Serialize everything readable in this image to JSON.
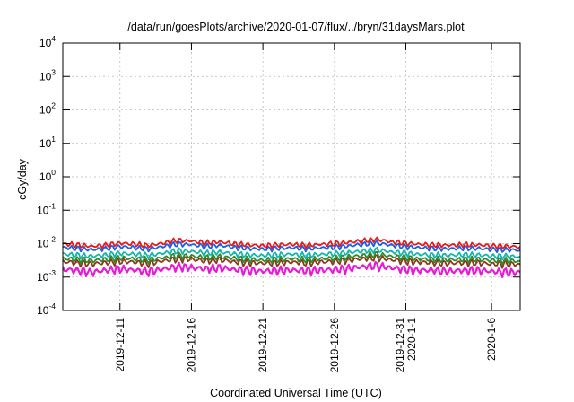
{
  "chart_data": {
    "type": "line",
    "title": "/data/run/goesPlots/archive/2020-01-07/flux/../bryn/31daysMars.plot",
    "xlabel": "Coordinated Universal Time (UTC)",
    "ylabel": "cGy/day",
    "y_scale": "log",
    "ylim": [
      0.0001,
      10000
    ],
    "y_ticks": [
      {
        "base": "10",
        "exp": "-4"
      },
      {
        "base": "10",
        "exp": "-3"
      },
      {
        "base": "10",
        "exp": "-2"
      },
      {
        "base": "10",
        "exp": "-1"
      },
      {
        "base": "10",
        "exp": "0"
      },
      {
        "base": "10",
        "exp": "1"
      },
      {
        "base": "10",
        "exp": "2"
      },
      {
        "base": "10",
        "exp": "3"
      },
      {
        "base": "10",
        "exp": "4"
      }
    ],
    "xlim": [
      "2019-12-07",
      "2020-01-08"
    ],
    "x_ticks": [
      {
        "date": "2019-12-11",
        "lines": [
          "2019-12-11"
        ]
      },
      {
        "date": "2019-12-16",
        "lines": [
          "2019-12-16"
        ]
      },
      {
        "date": "2019-12-21",
        "lines": [
          "2019-12-21"
        ]
      },
      {
        "date": "2019-12-26",
        "lines": [
          "2019-12-26"
        ]
      },
      {
        "date": "2019-12-31",
        "lines": [
          "2019-12-31",
          "2020-1-1"
        ]
      },
      {
        "date": "2020-01-06",
        "lines": [
          "2020-1-6"
        ]
      }
    ],
    "grid": true,
    "series": [
      {
        "color": "#e8191a",
        "base": 0.0095,
        "values": [
          0.0098,
          0.0093,
          0.0083,
          0.0091,
          0.0104,
          0.0097,
          0.0089,
          0.0102,
          0.0128,
          0.0118,
          0.0107,
          0.0112,
          0.01,
          0.0092,
          0.0087,
          0.0093,
          0.0095,
          0.0091,
          0.0094,
          0.0102,
          0.0108,
          0.0124,
          0.0133,
          0.0114,
          0.0103,
          0.0096,
          0.0092,
          0.0089,
          0.0094,
          0.0092,
          0.0087,
          0.0083,
          0.0081
        ]
      },
      {
        "color": "#1a5ee8",
        "base": 0.0075,
        "values": [
          0.0077,
          0.0073,
          0.0066,
          0.0072,
          0.0082,
          0.0076,
          0.007,
          0.0081,
          0.0099,
          0.0092,
          0.0084,
          0.0088,
          0.0079,
          0.0072,
          0.0069,
          0.0073,
          0.0075,
          0.0072,
          0.0074,
          0.008,
          0.0085,
          0.0097,
          0.0104,
          0.009,
          0.0081,
          0.0076,
          0.0072,
          0.007,
          0.0074,
          0.0072,
          0.0068,
          0.0066,
          0.0064
        ]
      },
      {
        "color": "#15b5a8",
        "base": 0.0048,
        "values": [
          0.0049,
          0.0046,
          0.0042,
          0.0046,
          0.0052,
          0.0048,
          0.0045,
          0.0051,
          0.0062,
          0.0058,
          0.0053,
          0.0056,
          0.005,
          0.0046,
          0.0044,
          0.0047,
          0.0048,
          0.0046,
          0.0047,
          0.0051,
          0.0054,
          0.0061,
          0.0065,
          0.0057,
          0.0052,
          0.0048,
          0.0046,
          0.0045,
          0.0047,
          0.0046,
          0.0043,
          0.0042,
          0.0041
        ]
      },
      {
        "color": "#2e8b2e",
        "base": 0.0035,
        "values": [
          0.0036,
          0.0034,
          0.0031,
          0.0034,
          0.0038,
          0.0035,
          0.0033,
          0.0037,
          0.0045,
          0.0042,
          0.0039,
          0.0041,
          0.0037,
          0.0034,
          0.0032,
          0.0034,
          0.0035,
          0.0034,
          0.0035,
          0.0037,
          0.004,
          0.0045,
          0.0048,
          0.0042,
          0.0038,
          0.0035,
          0.0034,
          0.0033,
          0.0034,
          0.0034,
          0.0032,
          0.0031,
          0.003
        ]
      },
      {
        "color": "#8b3a1a",
        "base": 0.0028,
        "values": [
          0.0029,
          0.0027,
          0.0025,
          0.0027,
          0.003,
          0.0028,
          0.0026,
          0.003,
          0.0036,
          0.0034,
          0.0031,
          0.0033,
          0.0029,
          0.0027,
          0.0026,
          0.0027,
          0.0028,
          0.0027,
          0.0028,
          0.003,
          0.0032,
          0.0036,
          0.0038,
          0.0033,
          0.003,
          0.0028,
          0.0027,
          0.0026,
          0.0027,
          0.0027,
          0.0025,
          0.0025,
          0.0024
        ]
      },
      {
        "color": "#e81ad8",
        "base": 0.0016,
        "values": [
          0.0017,
          0.0016,
          0.0014,
          0.0016,
          0.0018,
          0.0016,
          0.0015,
          0.0017,
          0.0021,
          0.0019,
          0.0018,
          0.0019,
          0.0017,
          0.0016,
          0.0015,
          0.0016,
          0.0016,
          0.0016,
          0.0016,
          0.0017,
          0.0018,
          0.0021,
          0.0022,
          0.0019,
          0.0017,
          0.0016,
          0.0016,
          0.0015,
          0.0016,
          0.0016,
          0.0015,
          0.0014,
          0.0014
        ]
      }
    ]
  }
}
